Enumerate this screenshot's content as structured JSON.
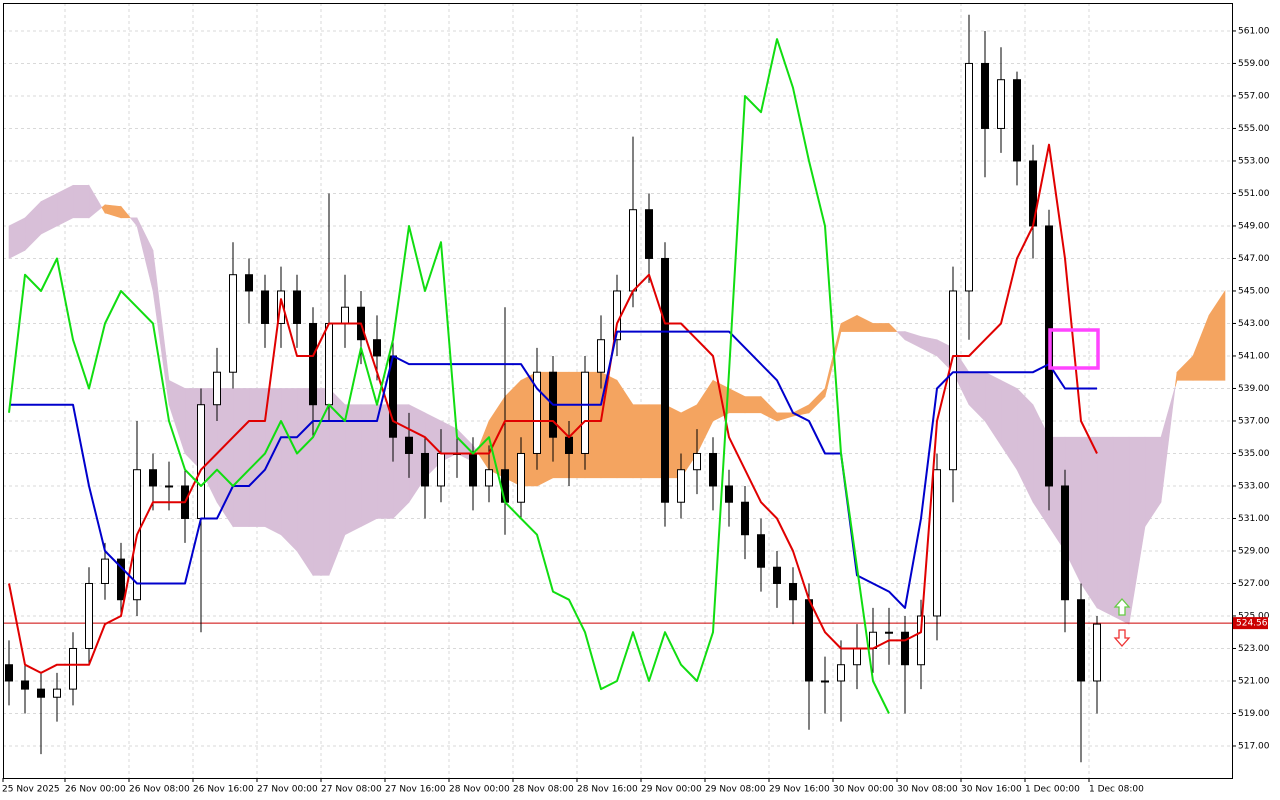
{
  "chart_data": {
    "type": "candlestick",
    "xlim": [
      -0.375,
      76.4375
    ],
    "ylim": [
      515.03,
      562.72
    ],
    "grid": true,
    "up_color": "#ffffff",
    "down_color": "#000000",
    "xticks": [
      {
        "value": -0.5,
        "label": "25 Nov 2025"
      },
      {
        "value": 3.5,
        "label": "26 Nov 00:00"
      },
      {
        "value": 7.5,
        "label": "26 Nov 08:00"
      },
      {
        "value": 11.5,
        "label": "26 Nov 16:00"
      },
      {
        "value": 15.5,
        "label": "27 Nov 00:00"
      },
      {
        "value": 19.5,
        "label": "27 Nov 08:00"
      },
      {
        "value": 23.5,
        "label": "27 Nov 16:00"
      },
      {
        "value": 27.5,
        "label": "28 Nov 00:00"
      },
      {
        "value": 31.5,
        "label": "28 Nov 08:00"
      },
      {
        "value": 35.5,
        "label": "28 Nov 16:00"
      },
      {
        "value": 39.5,
        "label": "29 Nov 00:00"
      },
      {
        "value": 43.5,
        "label": "29 Nov 08:00"
      },
      {
        "value": 47.5,
        "label": "29 Nov 16:00"
      },
      {
        "value": 51.5,
        "label": "30 Nov 00:00"
      },
      {
        "value": 55.5,
        "label": "30 Nov 08:00"
      },
      {
        "value": 59.5,
        "label": "30 Nov 16:00"
      },
      {
        "value": 63.5,
        "label": "1 Dec 00:00"
      },
      {
        "value": 67.5,
        "label": "1 Dec 08:00"
      }
    ],
    "yticks": [
      {
        "value": 517,
        "label": "517.00"
      },
      {
        "value": 519,
        "label": "519.00"
      },
      {
        "value": 521,
        "label": "521.00"
      },
      {
        "value": 523,
        "label": "523.00"
      },
      {
        "value": 525,
        "label": "525.00"
      },
      {
        "value": 527,
        "label": "527.00"
      },
      {
        "value": 529,
        "label": "529.00"
      },
      {
        "value": 531,
        "label": "531.00"
      },
      {
        "value": 533,
        "label": "533.00"
      },
      {
        "value": 535,
        "label": "535.00"
      },
      {
        "value": 537,
        "label": "537.00"
      },
      {
        "value": 539,
        "label": "539.00"
      },
      {
        "value": 541,
        "label": "541.00"
      },
      {
        "value": 543,
        "label": "543.00"
      },
      {
        "value": 545,
        "label": "545.00"
      },
      {
        "value": 547,
        "label": "547.00"
      },
      {
        "value": 549,
        "label": "549.00"
      },
      {
        "value": 551,
        "label": "551.00"
      },
      {
        "value": 553,
        "label": "553.00"
      },
      {
        "value": 555,
        "label": "555.00"
      },
      {
        "value": 557,
        "label": "557.00"
      },
      {
        "value": 559,
        "label": "559.00"
      },
      {
        "value": 561,
        "label": "561.00"
      }
    ],
    "open": [
      522,
      521,
      520.5,
      520,
      520.5,
      523,
      527,
      528.5,
      526,
      534,
      533,
      533,
      531,
      538,
      540,
      546,
      545,
      543,
      545,
      543,
      538,
      543,
      544,
      542,
      541,
      536,
      535,
      533,
      535,
      535,
      533,
      534,
      532,
      535,
      540,
      536,
      535,
      540,
      542,
      545,
      550,
      547,
      532,
      534,
      535,
      533,
      532,
      530,
      528,
      527,
      526,
      521,
      521,
      522,
      523,
      524,
      524,
      522,
      525,
      534,
      545,
      559,
      555,
      558,
      553,
      549,
      533,
      526,
      521
    ],
    "high": [
      523.5,
      522,
      521.5,
      521.5,
      524,
      528,
      529.5,
      529.5,
      537,
      535,
      534.5,
      534,
      539,
      541.5,
      548,
      547,
      546,
      546.5,
      546,
      544,
      551,
      546,
      545,
      543.5,
      542,
      537.5,
      536,
      536.5,
      536.5,
      536,
      535.5,
      544,
      536,
      541.5,
      541,
      537,
      541,
      543.5,
      546,
      554.5,
      551,
      548,
      535,
      536.5,
      536,
      534,
      533,
      531,
      529,
      528,
      527,
      522.5,
      523.5,
      524.5,
      525.5,
      525.5,
      525,
      526,
      535,
      546.5,
      562,
      561,
      560,
      558.5,
      554,
      550,
      534,
      527,
      525
    ],
    "low": [
      519.5,
      519,
      516.5,
      518.5,
      519.5,
      522,
      526,
      525,
      525,
      531.5,
      531.5,
      529.5,
      524,
      537,
      539,
      543,
      541.5,
      541.5,
      541.5,
      536,
      537,
      541.5,
      540.5,
      539.5,
      534.5,
      533.5,
      531,
      532,
      533.5,
      531.5,
      532,
      530,
      531,
      534,
      534.5,
      533,
      534,
      539,
      541,
      544,
      545.5,
      530.5,
      531,
      532.5,
      531.5,
      530.5,
      528.5,
      526.5,
      525.5,
      524.5,
      518,
      519,
      518.5,
      520.5,
      521.5,
      522,
      519,
      520.5,
      523.5,
      532,
      542,
      552,
      553.5,
      551.5,
      547,
      531.5,
      524,
      516,
      519
    ],
    "close": [
      521,
      520.5,
      520,
      520.5,
      523,
      527,
      528.5,
      526,
      534,
      533,
      533,
      531,
      538,
      540,
      546,
      545,
      543,
      545,
      543,
      538,
      543,
      544,
      542,
      541,
      536,
      535,
      533,
      535,
      535,
      533,
      534,
      532,
      535,
      540,
      536,
      535,
      540,
      542,
      545,
      550,
      547,
      532,
      534,
      535,
      533,
      532,
      530,
      528,
      527,
      526,
      521,
      521,
      522,
      523,
      524,
      524,
      522,
      525,
      534,
      545,
      559,
      555,
      558,
      553,
      549,
      533,
      526,
      521,
      524.5
    ],
    "cloud": {
      "bull_color": "#f4a460",
      "bear_color": "#d8bfd8",
      "span_a": [
        547,
        547.5,
        548.5,
        549,
        549.5,
        549.5,
        550.3,
        550.2,
        549,
        545,
        538,
        535,
        534,
        532,
        530.5,
        530.5,
        530.5,
        530,
        529,
        527.5,
        527.5,
        530,
        530.5,
        531,
        531,
        532,
        533.5,
        534.5,
        535,
        534.5,
        537,
        538.5,
        539.5,
        540,
        540,
        540,
        540,
        540,
        539.5,
        538,
        538,
        538,
        537.5,
        538,
        539.5,
        539,
        538.5,
        538.5,
        537.5,
        537.5,
        538,
        539,
        543,
        543.5,
        543,
        543,
        542,
        541.5,
        541,
        540,
        538,
        537,
        535.5,
        534,
        532,
        530.5,
        529,
        527,
        525.5,
        525,
        524.5,
        530.5,
        532,
        540,
        541,
        543.5,
        545
      ],
      "span_b": [
        549,
        549.5,
        550.5,
        551,
        551.5,
        551.5,
        549.8,
        549.5,
        549.5,
        547.5,
        539.5,
        539,
        539,
        539,
        539,
        539,
        539,
        539,
        539,
        539,
        539,
        538,
        538,
        538,
        538,
        538,
        537.5,
        537,
        536.5,
        535.5,
        534,
        533.5,
        533,
        533,
        533.5,
        533.5,
        533.5,
        533.5,
        533.5,
        533.5,
        533.5,
        533.5,
        533.5,
        535,
        537,
        537.5,
        537.5,
        537.5,
        537,
        537.3,
        537.5,
        538.5,
        542.5,
        542.5,
        542.5,
        542.5,
        542.5,
        542.2,
        542,
        541.5,
        540,
        540,
        539.5,
        539,
        538,
        536,
        536,
        536,
        536,
        536,
        536,
        536,
        536,
        539.5,
        539.5,
        539.5,
        539.5
      ]
    },
    "series": [
      {
        "color": "#e00000",
        "values": [
          527,
          522,
          521.5,
          522,
          522,
          522,
          524.5,
          525,
          530,
          532,
          532,
          532,
          534,
          535,
          536,
          537,
          537,
          544.5,
          541,
          541,
          543,
          543,
          543,
          540,
          537,
          536.5,
          536,
          535,
          535,
          535,
          535,
          537,
          537,
          537,
          537,
          536,
          537,
          537,
          543,
          545,
          546,
          543,
          543,
          542,
          541,
          536,
          534,
          532,
          531,
          529,
          526,
          524,
          523,
          523,
          523,
          523.5,
          523.5,
          524,
          537,
          541,
          541,
          542,
          543,
          547,
          549,
          554,
          547,
          537,
          535
        ]
      },
      {
        "color": "#0000cc",
        "values": [
          538,
          538,
          538,
          538,
          538,
          533,
          529,
          528,
          527,
          527,
          527,
          527,
          531,
          531,
          533,
          533,
          534,
          536,
          536,
          537,
          537,
          537,
          537,
          537,
          541,
          540.5,
          540.5,
          540.5,
          540.5,
          540.5,
          540.5,
          540.5,
          540.5,
          539,
          538,
          538,
          538,
          538,
          542.5,
          542.5,
          542.5,
          542.5,
          542.5,
          542.5,
          542.5,
          542.5,
          541.5,
          540.5,
          539.5,
          537.5,
          537,
          535,
          535,
          527.5,
          527,
          526.5,
          525.5,
          531,
          539,
          540,
          540,
          540,
          540,
          540,
          540,
          540.5,
          539,
          539,
          539
        ]
      },
      {
        "color": "#11dd11",
        "values": [
          537.5,
          546,
          545,
          547,
          542,
          539,
          543,
          545,
          544,
          543,
          537,
          534,
          533,
          534,
          533,
          534,
          535,
          537,
          535,
          536,
          538,
          537,
          541.5,
          538,
          542,
          549,
          545,
          548,
          536,
          535,
          536,
          532,
          531,
          530,
          526.5,
          526,
          524,
          520.5,
          521,
          524,
          521,
          524,
          522,
          521,
          524,
          540,
          557,
          556,
          560.5,
          557.5,
          553,
          549,
          535,
          528,
          521,
          519,
          null,
          null,
          null,
          null,
          null,
          null,
          null,
          null,
          null,
          null,
          null,
          null,
          null
        ]
      }
    ],
    "price_line": {
      "value": 524.56,
      "color": "#cc0000"
    }
  }
}
